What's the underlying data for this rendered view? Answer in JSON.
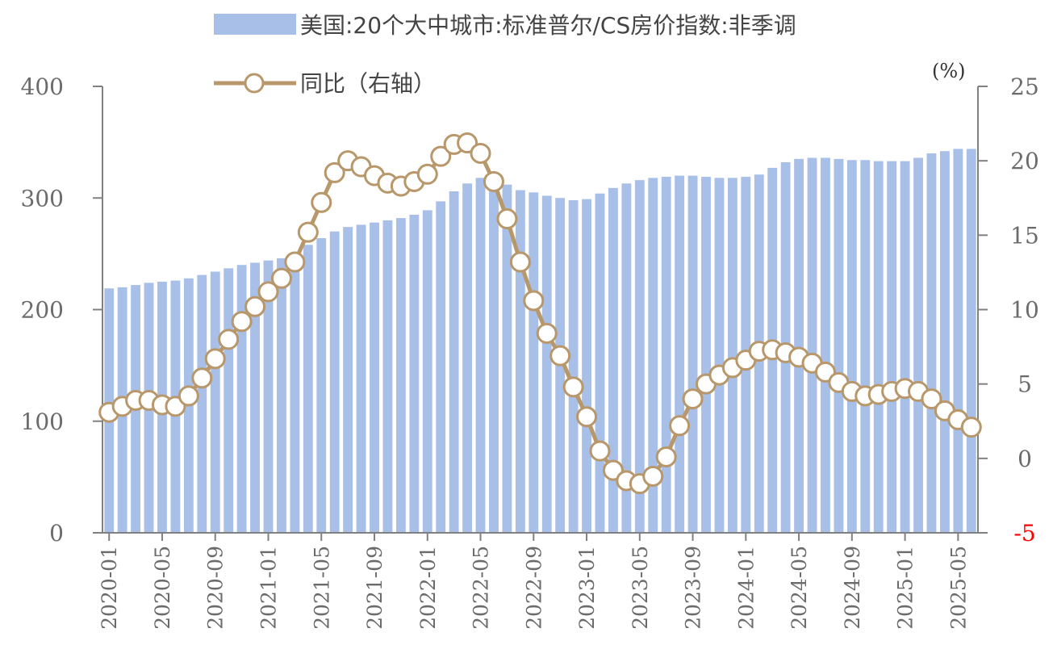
{
  "chart_data": {
    "type": "bar+line",
    "title": "",
    "x": [
      "2020-01",
      "2020-02",
      "2020-03",
      "2020-04",
      "2020-05",
      "2020-06",
      "2020-07",
      "2020-08",
      "2020-09",
      "2020-10",
      "2020-11",
      "2020-12",
      "2021-01",
      "2021-02",
      "2021-03",
      "2021-04",
      "2021-05",
      "2021-06",
      "2021-07",
      "2021-08",
      "2021-09",
      "2021-10",
      "2021-11",
      "2021-12",
      "2022-01",
      "2022-02",
      "2022-03",
      "2022-04",
      "2022-05",
      "2022-06",
      "2022-07",
      "2022-08",
      "2022-09",
      "2022-10",
      "2022-11",
      "2022-12",
      "2023-01",
      "2023-02",
      "2023-03",
      "2023-04",
      "2023-05",
      "2023-06",
      "2023-07",
      "2023-08",
      "2023-09",
      "2023-10",
      "2023-11",
      "2023-12",
      "2024-01",
      "2024-02",
      "2024-03",
      "2024-04",
      "2024-05",
      "2024-06",
      "2024-07",
      "2024-08",
      "2024-09",
      "2024-10",
      "2024-11",
      "2024-12",
      "2025-01",
      "2025-02",
      "2025-03",
      "2025-04",
      "2025-05",
      "2025-06"
    ],
    "x_tick_labels": [
      "2020-01",
      "2020-05",
      "2020-09",
      "2021-01",
      "2021-05",
      "2021-09",
      "2022-01",
      "2022-05",
      "2022-09",
      "2023-01",
      "2023-05",
      "2023-09",
      "2024-01",
      "2024-05",
      "2024-09",
      "2025-01",
      "2025-05"
    ],
    "series": [
      {
        "name": "美国:20个大中城市:标准普尔/CS房价指数:非季调",
        "type": "bar",
        "axis": "left",
        "color": "#a8bfe8",
        "values": [
          219,
          220,
          222,
          224,
          225,
          226,
          228,
          231,
          234,
          237,
          240,
          242,
          244,
          246,
          251,
          258,
          264,
          270,
          274,
          276,
          278,
          280,
          282,
          285,
          289,
          297,
          306,
          313,
          318,
          317,
          312,
          307,
          305,
          302,
          300,
          298,
          299,
          304,
          309,
          313,
          316,
          318,
          319,
          320,
          320,
          319,
          318,
          318,
          319,
          321,
          327,
          332,
          335,
          336,
          336,
          335,
          334,
          334,
          333,
          333,
          333,
          336,
          340,
          342,
          344,
          344
        ]
      },
      {
        "name": "同比（右轴）",
        "type": "line",
        "axis": "right",
        "color": "#b8976a",
        "values": [
          3.1,
          3.5,
          3.9,
          3.9,
          3.6,
          3.5,
          4.2,
          5.4,
          6.7,
          8.0,
          9.2,
          10.2,
          11.2,
          12.1,
          13.2,
          15.2,
          17.2,
          19.2,
          20.0,
          19.6,
          19.0,
          18.5,
          18.3,
          18.6,
          19.1,
          20.3,
          21.1,
          21.2,
          20.5,
          18.6,
          16.1,
          13.2,
          10.6,
          8.4,
          6.9,
          4.8,
          2.8,
          0.5,
          -0.8,
          -1.5,
          -1.7,
          -1.2,
          0.1,
          2.2,
          4.0,
          5.0,
          5.6,
          6.1,
          6.6,
          7.2,
          7.3,
          7.1,
          6.8,
          6.4,
          5.8,
          5.1,
          4.5,
          4.2,
          4.3,
          4.5,
          4.7,
          4.5,
          4.0,
          3.2,
          2.6,
          2.1
        ]
      }
    ],
    "y_left": {
      "min": 0,
      "max": 400,
      "ticks": [
        0,
        100,
        200,
        300,
        400
      ]
    },
    "y_right": {
      "min": -5,
      "max": 25,
      "ticks": [
        -5,
        0,
        5,
        10,
        15,
        20,
        25
      ],
      "unit_label": "(%)",
      "negative_tick_color": "#ff0000"
    },
    "axis_color": "#808080",
    "legend": {
      "position": "top",
      "items": [
        {
          "label": "美国:20个大中城市:标准普尔/CS房价指数:非季调",
          "marker": "bar"
        },
        {
          "label": "同比（右轴）",
          "marker": "line-circle"
        }
      ]
    }
  }
}
